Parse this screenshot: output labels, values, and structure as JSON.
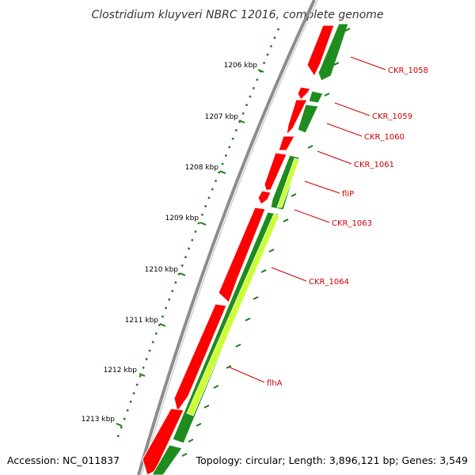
{
  "title": "Clostridium kluyveri NBRC 12016, complete genome",
  "footer": {
    "accession": "Accession: NC_011837",
    "summary": "Topology: circular; Length: 3,896,121 bp; Genes: 3,549"
  },
  "ruler_labels": [
    "1206 kbp",
    "1207 kbp",
    "1208 kbp",
    "1209 kbp",
    "1210 kbp",
    "1211 kbp",
    "1212 kbp",
    "1213 kbp"
  ],
  "gene_labels": [
    "CKR_1058",
    "CKR_1059",
    "CKR_1060",
    "CKR_1061",
    "fliP",
    "CKR_1063",
    "CKR_1064",
    "flhA"
  ],
  "colors": {
    "backbone": "#8c8c8c",
    "cds_forward": "#ff0000",
    "cds_reverse": "#1e8c1e",
    "highlight": "#ccff33",
    "ticks": "#1a7a1a",
    "label": "#cc0000"
  }
}
